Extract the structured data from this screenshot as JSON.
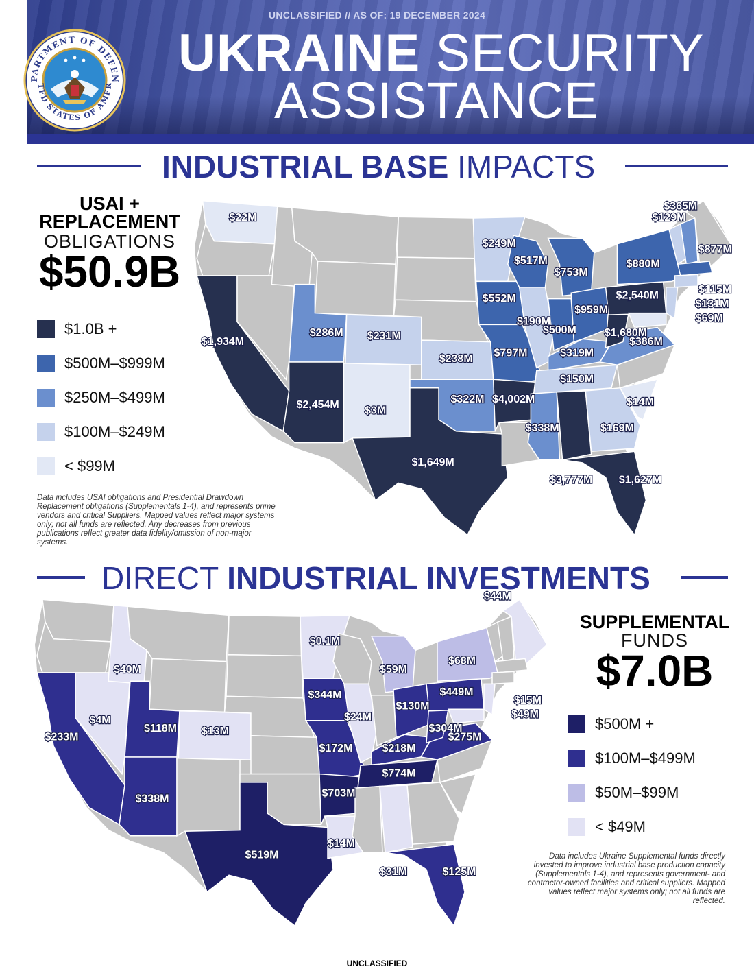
{
  "header": {
    "classification": "UNCLASSIFIED // AS OF: 19 DECEMBER 2024",
    "title_bold": "UKRAINE",
    "title_rest": "SECURITY",
    "title_line2": "ASSISTANCE",
    "seal_text_top": "DEPARTMENT OF DEFENSE",
    "seal_text_bottom": "UNITED STATES OF AMERICA"
  },
  "section1": {
    "title_bold": "INDUSTRIAL BASE",
    "title_rest": "IMPACTS",
    "total_label_line1": "USAI +",
    "total_label_line2": "REPLACEMENT",
    "total_label_line3": "OBLIGATIONS",
    "total_value": "$50.9B",
    "legend": [
      {
        "label": "$1.0B +",
        "color": "#26304f"
      },
      {
        "label": "$500M–$999M",
        "color": "#3d65ad"
      },
      {
        "label": "$250M–$499M",
        "color": "#6b8fce"
      },
      {
        "label": "$100M–$249M",
        "color": "#c5d2ec"
      },
      {
        "label": "< $99M",
        "color": "#e2e8f5"
      }
    ],
    "note": "Data includes USAI obligations and Presidential Drawdown Replacement obligations (Supplementals 1-4), and represents prime vendors and critical Suppliers. Mapped values reflect major systems only; not all funds are reflected. Any decreases from previous publications reflect greater data fidelity/omission of non-major systems.",
    "states": [
      {
        "state": "WA",
        "value": "$22M",
        "tier": 4
      },
      {
        "state": "CA",
        "value": "$1,934M",
        "tier": 0
      },
      {
        "state": "AZ",
        "value": "$2,454M",
        "tier": 0
      },
      {
        "state": "UT",
        "value": "$286M",
        "tier": 2
      },
      {
        "state": "CO",
        "value": "$231M",
        "tier": 3
      },
      {
        "state": "NM",
        "value": "$3M",
        "tier": 4
      },
      {
        "state": "TX",
        "value": "$1,649M",
        "tier": 0
      },
      {
        "state": "KS",
        "value": "$238M",
        "tier": 3
      },
      {
        "state": "OK",
        "value": "$322M",
        "tier": 2
      },
      {
        "state": "MN",
        "value": "$249M",
        "tier": 3
      },
      {
        "state": "IA",
        "value": "$552M",
        "tier": 1
      },
      {
        "state": "MO",
        "value": "$797M",
        "tier": 1
      },
      {
        "state": "AR",
        "value": "$4,002M",
        "tier": 0
      },
      {
        "state": "WI",
        "value": "$517M",
        "tier": 1
      },
      {
        "state": "IL",
        "value": "$190M",
        "tier": 3
      },
      {
        "state": "MI",
        "value": "$753M",
        "tier": 1
      },
      {
        "state": "IN",
        "value": "$500M",
        "tier": 1
      },
      {
        "state": "OH",
        "value": "$959M",
        "tier": 1
      },
      {
        "state": "KY",
        "value": "$319M",
        "tier": 2
      },
      {
        "state": "TN",
        "value": "$150M",
        "tier": 3
      },
      {
        "state": "MS",
        "value": "$338M",
        "tier": 2
      },
      {
        "state": "AL",
        "value": "$3,777M",
        "tier": 0
      },
      {
        "state": "GA",
        "value": "$169M",
        "tier": 3
      },
      {
        "state": "FL",
        "value": "$1,627M",
        "tier": 0
      },
      {
        "state": "SC",
        "value": "$14M",
        "tier": 4
      },
      {
        "state": "WV",
        "value": "$1,680M",
        "tier": 0
      },
      {
        "state": "VA",
        "value": "$386M",
        "tier": 2
      },
      {
        "state": "PA",
        "value": "$2,540M",
        "tier": 0
      },
      {
        "state": "NY",
        "value": "$880M",
        "tier": 1
      },
      {
        "state": "VT",
        "value": "$129M",
        "tier": 3
      },
      {
        "state": "NH",
        "value": "$365M",
        "tier": 2
      },
      {
        "state": "MA",
        "value": "$877M",
        "tier": 1
      },
      {
        "state": "CT",
        "value": "$115M",
        "tier": 3
      },
      {
        "state": "NJ",
        "value": "$131M",
        "tier": 3
      },
      {
        "state": "MD",
        "value": "$69M",
        "tier": 4
      }
    ]
  },
  "section2": {
    "title_rest": "DIRECT",
    "title_bold": "INDUSTRIAL INVESTMENTS",
    "total_label_line1": "SUPPLEMENTAL",
    "total_label_line2": "FUNDS",
    "total_value": "$7.0B",
    "legend": [
      {
        "label": "$500M +",
        "color": "#1e1f66"
      },
      {
        "label": "$100M–$499M",
        "color": "#2f2f8f"
      },
      {
        "label": "$50M–$99M",
        "color": "#bdbde6"
      },
      {
        "label": "< $49M",
        "color": "#e2e2f4"
      }
    ],
    "note": "Data includes Ukraine Supplemental funds directly invested to improve industrial base production capacity (Supplementals 1-4), and represents government- and contractor-owned facilities and critical suppliers. Mapped values reflect major systems only; not all funds are reflected.",
    "states": [
      {
        "state": "CA",
        "value": "$233M",
        "tier": 1
      },
      {
        "state": "NV",
        "value": "$4M",
        "tier": 3
      },
      {
        "state": "ID",
        "value": "$40M",
        "tier": 3
      },
      {
        "state": "UT",
        "value": "$118M",
        "tier": 1
      },
      {
        "state": "AZ",
        "value": "$338M",
        "tier": 1
      },
      {
        "state": "CO",
        "value": "$13M",
        "tier": 3
      },
      {
        "state": "TX",
        "value": "$519M",
        "tier": 0
      },
      {
        "state": "MN",
        "value": "$0.1M",
        "tier": 3
      },
      {
        "state": "IA",
        "value": "$344M",
        "tier": 1
      },
      {
        "state": "MO",
        "value": "$172M",
        "tier": 1
      },
      {
        "state": "AR",
        "value": "$703M",
        "tier": 0
      },
      {
        "state": "LA",
        "value": "$14M",
        "tier": 3
      },
      {
        "state": "IL",
        "value": "$24M",
        "tier": 3
      },
      {
        "state": "MI",
        "value": "$59M",
        "tier": 2
      },
      {
        "state": "OH",
        "value": "$130M",
        "tier": 1
      },
      {
        "state": "KY",
        "value": "$218M",
        "tier": 1
      },
      {
        "state": "TN",
        "value": "$774M",
        "tier": 0
      },
      {
        "state": "AL",
        "value": "$31M",
        "tier": 3
      },
      {
        "state": "FL",
        "value": "$125M",
        "tier": 1
      },
      {
        "state": "WV",
        "value": "$304M",
        "tier": 1
      },
      {
        "state": "VA",
        "value": "$275M",
        "tier": 1
      },
      {
        "state": "PA",
        "value": "$449M",
        "tier": 1
      },
      {
        "state": "NY",
        "value": "$68M",
        "tier": 2
      },
      {
        "state": "ME",
        "value": "$44M",
        "tier": 3
      },
      {
        "state": "NJ",
        "value": "$15M",
        "tier": 3
      },
      {
        "state": "MD",
        "value": "$49M",
        "tier": 3
      }
    ]
  },
  "footer": {
    "classification": "UNCLASSIFIED"
  }
}
